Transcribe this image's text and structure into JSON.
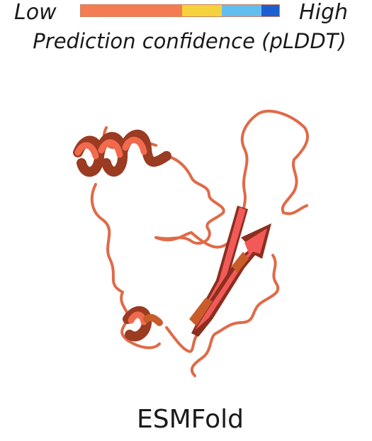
{
  "legend": {
    "low_label": "Low",
    "high_label": "High",
    "caption": "Prediction confidence (pLDDT)",
    "segments": [
      {
        "color": "#f47c52",
        "fraction": 0.51
      },
      {
        "color": "#f5d23c",
        "fraction": 0.2
      },
      {
        "color": "#62bef0",
        "fraction": 0.2
      },
      {
        "color": "#1d5fd0",
        "fraction": 0.09
      }
    ]
  },
  "structure": {
    "icon": "protein-ribbon-icon",
    "colors": {
      "coil": "#e06a48",
      "helix_front": "#f26a4d",
      "helix_back": "#9a3b22",
      "sheet_front": "#f25a5a",
      "sheet_dark": "#8c2e1e",
      "sheet_mid": "#c85d2a"
    }
  },
  "method_label": "ESMFold"
}
